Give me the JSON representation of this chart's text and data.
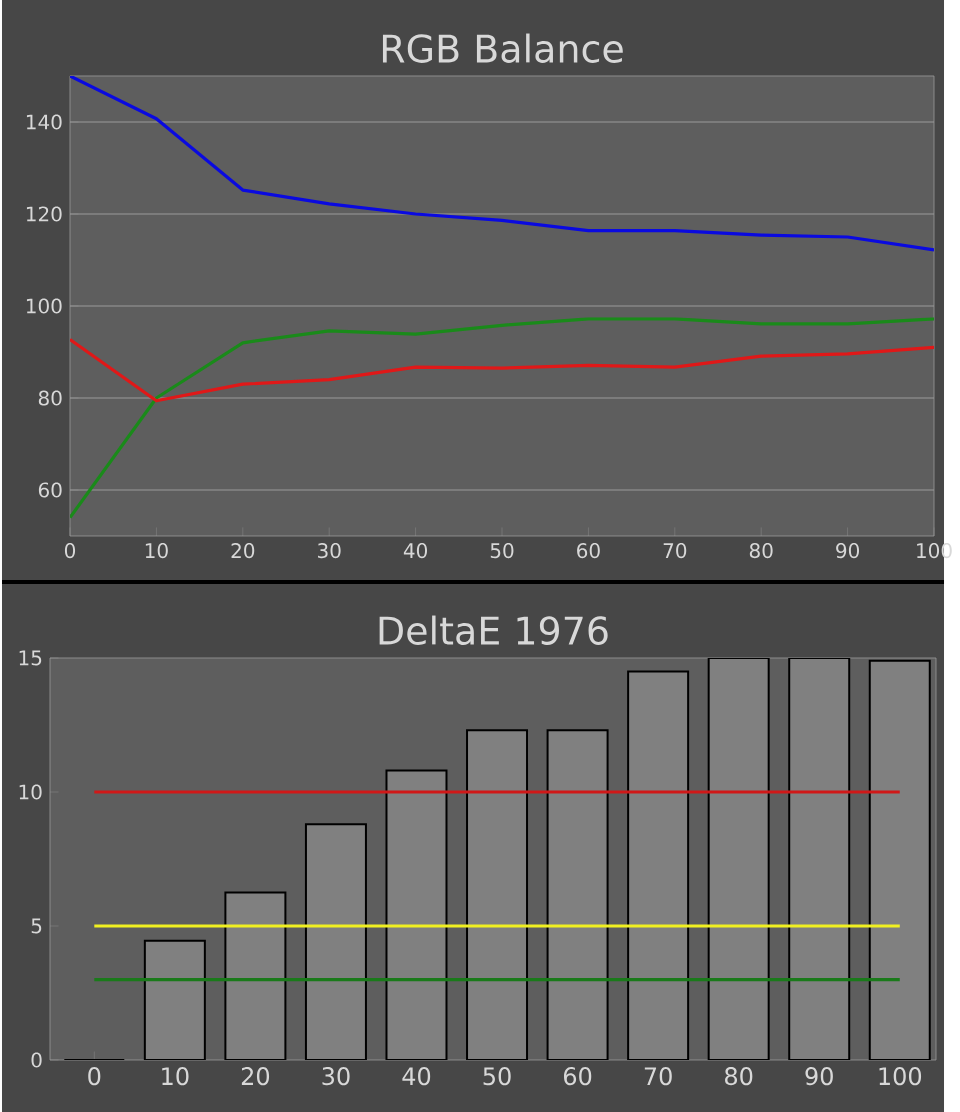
{
  "chart_data": [
    {
      "type": "line",
      "title": "RGB Balance",
      "x": [
        0,
        10,
        20,
        30,
        40,
        50,
        60,
        70,
        80,
        90,
        100
      ],
      "series": [
        {
          "color": "#0a0ae0",
          "values": [
            150,
            140.7,
            125.2,
            122.2,
            120,
            118.6,
            116.4,
            116.4,
            115.4,
            115,
            112.2
          ]
        },
        {
          "color": "#1a8a1a",
          "values": [
            54,
            80,
            92,
            94.6,
            93.9,
            95.8,
            97.2,
            97.2,
            96.1,
            96.1,
            97.2
          ]
        },
        {
          "color": "#e01818",
          "values": [
            92.7,
            79.4,
            83,
            84,
            86.7,
            86.5,
            87.1,
            86.7,
            89.1,
            89.6,
            91
          ]
        }
      ],
      "xlim": [
        0,
        100
      ],
      "ylim": [
        50,
        150
      ],
      "xticks": [
        0,
        10,
        20,
        30,
        40,
        50,
        60,
        70,
        80,
        90,
        100
      ],
      "yticks": [
        60,
        80,
        100,
        120,
        140
      ],
      "grid": "y",
      "marker": "none",
      "line_style": "solid"
    },
    {
      "type": "bar",
      "title": "DeltaE 1976",
      "categories": [
        "0",
        "10",
        "20",
        "30",
        "40",
        "50",
        "60",
        "70",
        "80",
        "90",
        "100"
      ],
      "values": [
        0,
        4.45,
        6.25,
        8.8,
        10.8,
        12.3,
        12.3,
        14.5,
        15,
        15,
        14.9
      ],
      "color": "#808080",
      "ylim": [
        0,
        15
      ],
      "yticks": [
        0,
        5,
        10,
        15
      ],
      "grid": false,
      "ref_lines": [
        {
          "axis": "y",
          "value": 10,
          "color": "#d01818"
        },
        {
          "axis": "y",
          "value": 5,
          "color": "#f0f020"
        },
        {
          "axis": "y",
          "value": 3,
          "color": "#1a7a1a"
        }
      ]
    }
  ]
}
